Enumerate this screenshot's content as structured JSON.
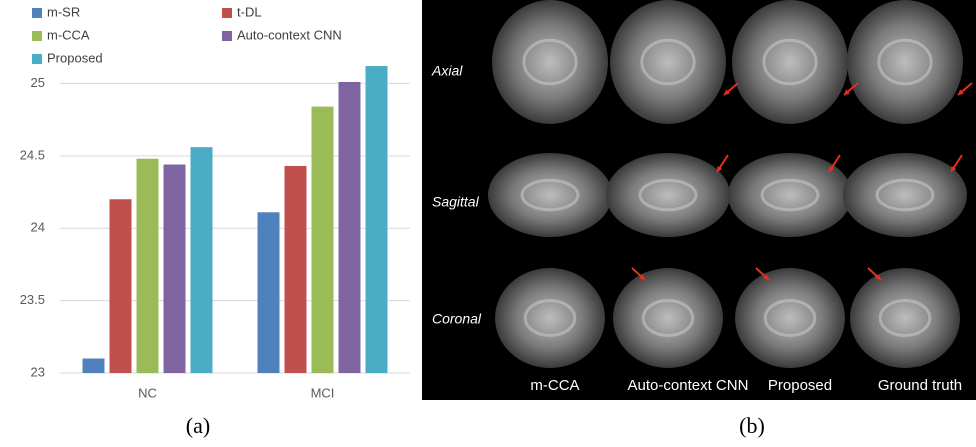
{
  "chart_data": {
    "type": "bar",
    "categories": [
      "NC",
      "MCI"
    ],
    "series": [
      {
        "name": "m-SR",
        "color": "#4f81bd",
        "values": [
          23.1,
          24.11
        ]
      },
      {
        "name": "t-DL",
        "color": "#c0504d",
        "values": [
          24.2,
          24.43
        ]
      },
      {
        "name": "m-CCA",
        "color": "#9bbb59",
        "values": [
          24.48,
          24.84
        ]
      },
      {
        "name": "Auto-context CNN",
        "color": "#8064a2",
        "values": [
          24.44,
          25.01
        ]
      },
      {
        "name": "Proposed",
        "color": "#4bacc6",
        "values": [
          24.56,
          25.12
        ]
      }
    ],
    "ylim": [
      23,
      25.3
    ],
    "yticks": [
      23,
      23.5,
      24,
      24.5,
      25
    ],
    "grid": true,
    "legend": "top-left"
  },
  "panel_b": {
    "row_labels": [
      "Axial",
      "Sagittal",
      "Coronal"
    ],
    "column_labels": [
      "m-CCA",
      "Auto-context CNN",
      "Proposed",
      "Ground truth"
    ]
  },
  "captions": [
    "(a)",
    "(b)"
  ]
}
